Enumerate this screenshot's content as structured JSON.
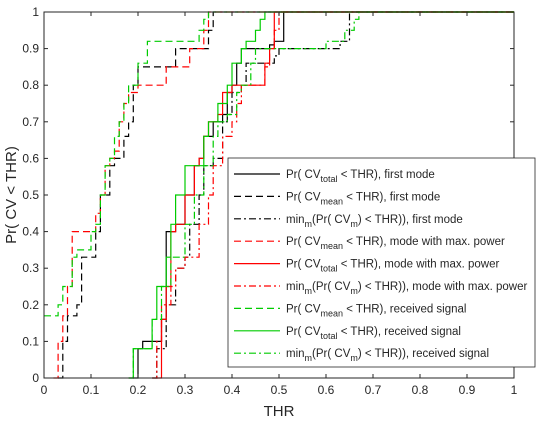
{
  "chart_data": {
    "type": "line",
    "xlabel": "THR",
    "ylabel": "Pr( CV < THR)",
    "xlim": [
      0,
      1
    ],
    "ylim": [
      0,
      1
    ],
    "xticks": [
      0,
      0.1,
      0.2,
      0.3,
      0.4,
      0.5,
      0.6,
      0.7,
      0.8,
      0.9,
      1
    ],
    "yticks": [
      0,
      0.1,
      0.2,
      0.3,
      0.4,
      0.5,
      0.6,
      0.7,
      0.8,
      0.9,
      1
    ],
    "xtick_labels": [
      "0",
      "0.1",
      "0.2",
      "0.3",
      "0.4",
      "0.5",
      "0.6",
      "0.7",
      "0.8",
      "0.9",
      "1"
    ],
    "ytick_labels": [
      "0",
      "0.1",
      "0.2",
      "0.3",
      "0.4",
      "0.5",
      "0.6",
      "0.7",
      "0.8",
      "0.9",
      "1"
    ],
    "grid": false,
    "legend_position": "right",
    "series": [
      {
        "color": "#000000",
        "dash": "solid",
        "legend": {
          "pre": "Pr( CV",
          "sub": "total",
          "post": " < THR), first mode"
        },
        "x": [
          0.19,
          0.2,
          0.21,
          0.25,
          0.26,
          0.28,
          0.3,
          0.32,
          0.33,
          0.34,
          0.36,
          0.38,
          0.39,
          0.4,
          0.41,
          0.42,
          0.48,
          0.49,
          0.51,
          1.0
        ],
        "y": [
          0,
          0.08,
          0.1,
          0.16,
          0.4,
          0.42,
          0.5,
          0.58,
          0.6,
          0.66,
          0.7,
          0.72,
          0.78,
          0.8,
          0.86,
          0.9,
          0.91,
          0.92,
          1.0,
          1.0
        ]
      },
      {
        "color": "#000000",
        "dash": "dashed",
        "legend": {
          "pre": "Pr( CV",
          "sub": "mean",
          "post": " < THR), first mode"
        },
        "x": [
          0.03,
          0.04,
          0.05,
          0.07,
          0.08,
          0.11,
          0.12,
          0.14,
          0.15,
          0.17,
          0.18,
          0.19,
          0.2,
          0.27,
          0.28,
          0.34,
          0.35,
          0.36,
          1.0
        ],
        "y": [
          0,
          0.1,
          0.17,
          0.2,
          0.33,
          0.4,
          0.5,
          0.58,
          0.6,
          0.66,
          0.7,
          0.8,
          0.85,
          0.85,
          0.9,
          0.9,
          0.95,
          1.0,
          1.0
        ]
      },
      {
        "color": "#000000",
        "dash": "dashdot",
        "legend": {
          "pre": "min",
          "sub": "m",
          "post": "(Pr( CV",
          "sub2": "m",
          "post2": ") < THR)), first mode"
        },
        "x": [
          0.23,
          0.24,
          0.26,
          0.28,
          0.3,
          0.31,
          0.33,
          0.34,
          0.36,
          0.38,
          0.39,
          0.4,
          0.42,
          0.43,
          0.49,
          0.5,
          0.62,
          0.63,
          0.65,
          1.0
        ],
        "y": [
          0,
          0.08,
          0.2,
          0.3,
          0.33,
          0.42,
          0.5,
          0.58,
          0.6,
          0.7,
          0.72,
          0.78,
          0.8,
          0.86,
          0.88,
          0.9,
          0.9,
          0.92,
          1.0,
          1.0
        ]
      },
      {
        "color": "#ff0000",
        "dash": "dashed",
        "legend": {
          "pre": "Pr( CV",
          "sub": "mean",
          "post": " < THR), mode with max. power"
        },
        "x": [
          0.02,
          0.03,
          0.04,
          0.05,
          0.06,
          0.1,
          0.11,
          0.12,
          0.13,
          0.14,
          0.15,
          0.16,
          0.17,
          0.18,
          0.2,
          0.21,
          0.25,
          0.26,
          0.3,
          0.31,
          0.34,
          0.35,
          1.0
        ],
        "y": [
          0,
          0.1,
          0.17,
          0.25,
          0.4,
          0.4,
          0.45,
          0.5,
          0.58,
          0.6,
          0.62,
          0.7,
          0.75,
          0.78,
          0.8,
          0.8,
          0.8,
          0.85,
          0.85,
          0.9,
          0.95,
          1.0,
          1.0
        ]
      },
      {
        "color": "#ff0000",
        "dash": "solid",
        "legend": {
          "pre": "Pr( CV",
          "sub": "total",
          "post": " < THR), mode with max. power"
        },
        "x": [
          0.24,
          0.25,
          0.26,
          0.27,
          0.28,
          0.3,
          0.32,
          0.33,
          0.34,
          0.35,
          0.37,
          0.38,
          0.4,
          0.41,
          0.42,
          0.46,
          0.47,
          0.48,
          0.49,
          1.0
        ],
        "y": [
          0,
          0.16,
          0.25,
          0.4,
          0.42,
          0.5,
          0.58,
          0.6,
          0.66,
          0.7,
          0.72,
          0.78,
          0.8,
          0.8,
          0.8,
          0.8,
          0.86,
          0.9,
          1.0,
          1.0
        ]
      },
      {
        "color": "#ff0000",
        "dash": "dashdot",
        "legend": {
          "pre": "min",
          "sub": "m",
          "post": "(Pr( CV",
          "sub2": "m",
          "post2": ") < THR)), mode with max. power"
        },
        "x": [
          0.23,
          0.24,
          0.25,
          0.27,
          0.28,
          0.3,
          0.33,
          0.35,
          0.36,
          0.38,
          0.4,
          0.41,
          0.42,
          0.47,
          0.48,
          0.49,
          0.5,
          1.0
        ],
        "y": [
          0,
          0.1,
          0.2,
          0.25,
          0.3,
          0.33,
          0.42,
          0.5,
          0.58,
          0.66,
          0.7,
          0.75,
          0.8,
          0.85,
          0.9,
          0.95,
          1.0,
          1.0
        ]
      },
      {
        "color": "#00cc00",
        "dash": "dashed",
        "legend": {
          "pre": "Pr( CV",
          "sub": "mean",
          "post": " < THR), received signal"
        },
        "x": [
          0.0,
          0.02,
          0.03,
          0.04,
          0.06,
          0.07,
          0.1,
          0.11,
          0.12,
          0.13,
          0.14,
          0.15,
          0.16,
          0.17,
          0.18,
          0.2,
          0.22,
          0.32,
          0.33,
          0.34,
          0.35,
          1.0
        ],
        "y": [
          0.17,
          0.17,
          0.2,
          0.25,
          0.33,
          0.35,
          0.4,
          0.42,
          0.5,
          0.58,
          0.6,
          0.66,
          0.7,
          0.75,
          0.8,
          0.86,
          0.92,
          0.92,
          0.95,
          0.98,
          1.0,
          1.0
        ]
      },
      {
        "color": "#00cc00",
        "dash": "solid",
        "legend": {
          "pre": "Pr( CV",
          "sub": "total",
          "post": " < THR), received signal"
        },
        "x": [
          0.18,
          0.19,
          0.22,
          0.23,
          0.24,
          0.26,
          0.27,
          0.28,
          0.3,
          0.32,
          0.34,
          0.35,
          0.37,
          0.39,
          0.4,
          0.42,
          0.43,
          0.45,
          0.46,
          0.47,
          1.0
        ],
        "y": [
          0,
          0.08,
          0.08,
          0.16,
          0.25,
          0.33,
          0.42,
          0.5,
          0.58,
          0.58,
          0.66,
          0.7,
          0.75,
          0.8,
          0.86,
          0.9,
          0.92,
          0.95,
          0.98,
          1.0,
          1.0
        ]
      },
      {
        "color": "#00cc00",
        "dash": "dashdot",
        "legend": {
          "pre": "min",
          "sub": "m",
          "post": "(Pr( CV",
          "sub2": "m",
          "post2": ") < THR)), received signal"
        },
        "x": [
          0.18,
          0.19,
          0.22,
          0.23,
          0.25,
          0.27,
          0.3,
          0.32,
          0.34,
          0.36,
          0.37,
          0.39,
          0.41,
          0.42,
          0.44,
          0.45,
          0.6,
          0.64,
          0.66,
          0.67,
          1.0
        ],
        "y": [
          0,
          0.08,
          0.08,
          0.16,
          0.25,
          0.33,
          0.42,
          0.5,
          0.58,
          0.66,
          0.7,
          0.72,
          0.78,
          0.8,
          0.86,
          0.9,
          0.92,
          0.95,
          0.98,
          1.0,
          1.0
        ]
      }
    ]
  }
}
